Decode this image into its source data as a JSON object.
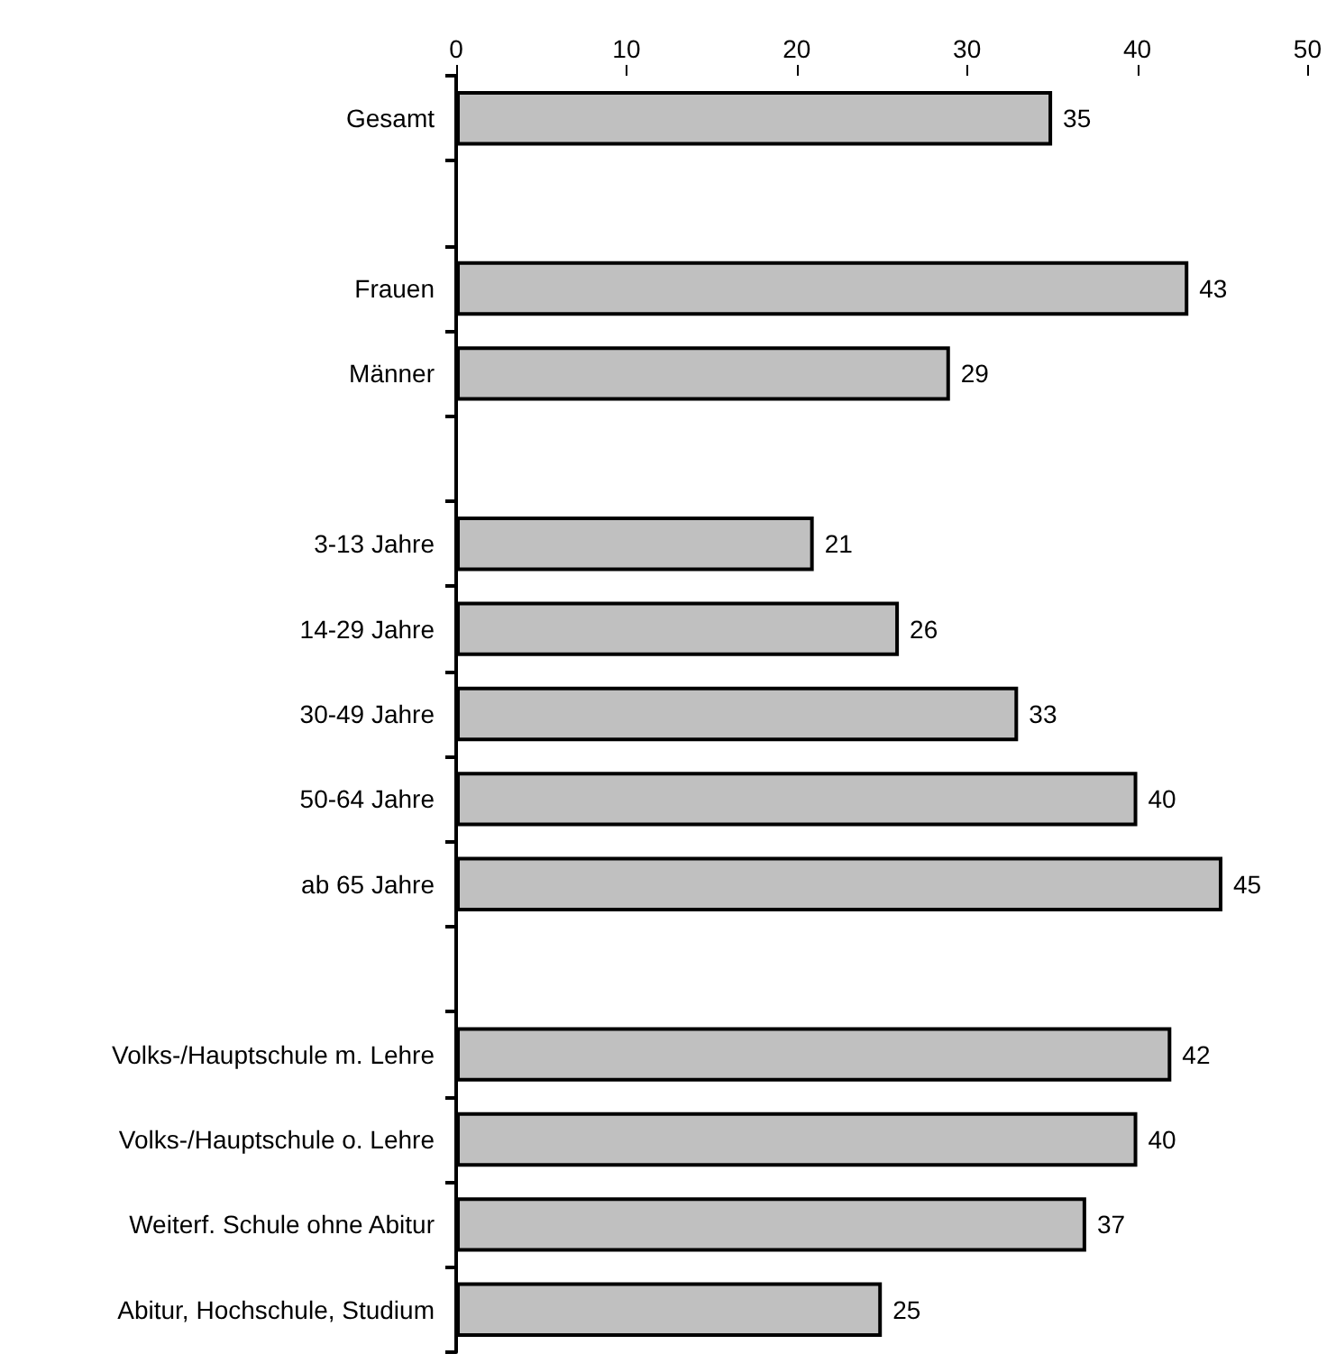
{
  "chart_data": {
    "type": "bar",
    "orientation": "horizontal",
    "categories": [
      "Gesamt",
      null,
      "Frauen",
      "Männer",
      null,
      "3-13 Jahre",
      "14-29 Jahre",
      "30-49 Jahre",
      "50-64 Jahre",
      "ab 65 Jahre",
      null,
      "Volks-/Hauptschule m. Lehre",
      "Volks-/Hauptschule o. Lehre",
      "Weiterf. Schule ohne Abitur",
      "Abitur, Hochschule, Studium"
    ],
    "values": [
      35,
      null,
      43,
      29,
      null,
      21,
      26,
      33,
      40,
      45,
      null,
      42,
      40,
      37,
      25
    ],
    "color": "#c0c0c0",
    "xlim": [
      0,
      50
    ],
    "xticks": [
      0,
      10,
      20,
      30,
      40,
      50
    ],
    "data_labels": true
  }
}
